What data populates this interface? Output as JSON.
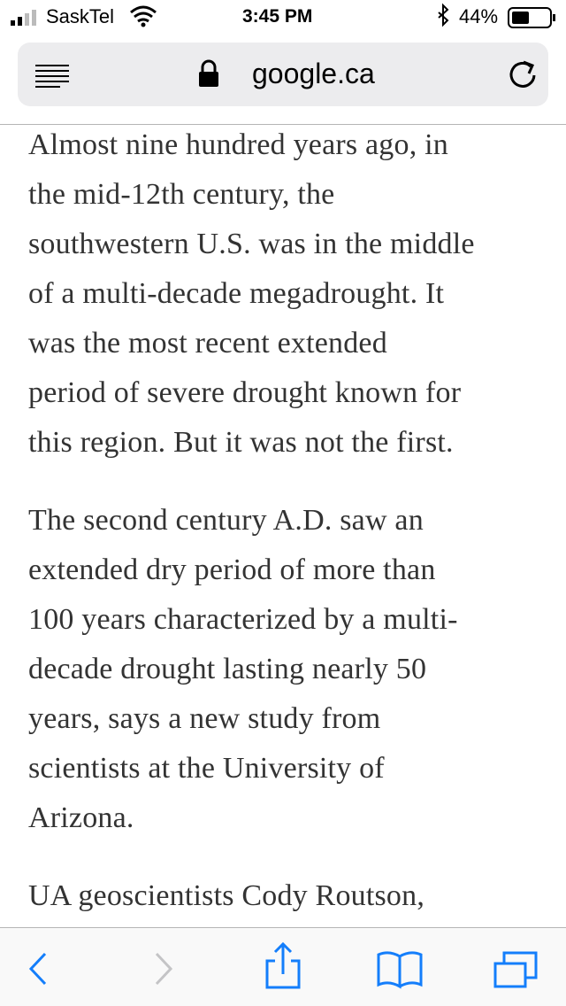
{
  "status_bar": {
    "carrier": "SaskTel",
    "time": "3:45 PM",
    "battery": "44%"
  },
  "address_bar": {
    "url": "google.ca"
  },
  "article": {
    "paragraphs": [
      [
        "Almost nine hundred years ago, in",
        "the mid-12th century, the",
        "southwestern U.S. was in the middle",
        "of a multi-decade megadrought. It",
        "was the most recent extended",
        "period of severe drought known for",
        "this region. But it was not the first."
      ],
      [
        "The second century A.D. saw an",
        "extended dry period of more than",
        "100 years characterized by a multi-",
        "decade drought lasting nearly 50",
        "years, says a new study from",
        "scientists at the University of",
        "Arizona."
      ],
      [
        "UA geoscientists Cody Routson,"
      ]
    ]
  }
}
